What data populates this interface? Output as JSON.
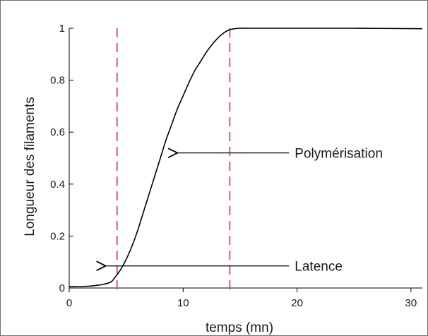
{
  "chart_data": {
    "type": "line",
    "title": "",
    "xlabel": "temps (mn)",
    "ylabel": "Longueur des filaments",
    "xlim": [
      0,
      31
    ],
    "ylim": [
      0,
      1
    ],
    "x_ticks": [
      0,
      10,
      20,
      30
    ],
    "y_ticks": [
      0,
      0.2,
      0.4,
      0.6,
      0.8,
      1
    ],
    "y_tick_labels": [
      "0",
      "0.2",
      "0.4",
      "0.6",
      "0.8",
      "1"
    ],
    "grid": false,
    "series": [
      {
        "x": [
          0,
          2,
          3.5,
          4,
          4.5,
          5,
          5.5,
          6,
          6.5,
          7,
          7.5,
          8,
          8.5,
          9,
          9.5,
          10,
          10.5,
          11,
          11.5,
          12,
          12.5,
          13,
          13.5,
          14,
          14.5,
          15,
          16,
          20,
          25,
          31
        ],
        "y": [
          0.005,
          0.008,
          0.02,
          0.04,
          0.07,
          0.11,
          0.16,
          0.22,
          0.29,
          0.36,
          0.43,
          0.5,
          0.57,
          0.63,
          0.69,
          0.74,
          0.79,
          0.835,
          0.87,
          0.905,
          0.935,
          0.96,
          0.98,
          0.993,
          0.998,
          1.0,
          1.0,
          1.0,
          1.0,
          0.998
        ],
        "color": "#000000"
      }
    ],
    "vlines": [
      {
        "x": 4.2,
        "color": "#e0303a",
        "style": "dashed"
      },
      {
        "x": 14.1,
        "color": "#e0303a",
        "style": "dashed"
      }
    ],
    "annotations": [
      {
        "text": "Polymérisation",
        "arrow_from": [
          19.3,
          0.52
        ],
        "arrow_to": [
          9.5,
          0.52
        ]
      },
      {
        "text": "Latence",
        "arrow_from": [
          19.3,
          0.085
        ],
        "arrow_to": [
          3.2,
          0.085
        ]
      }
    ]
  }
}
